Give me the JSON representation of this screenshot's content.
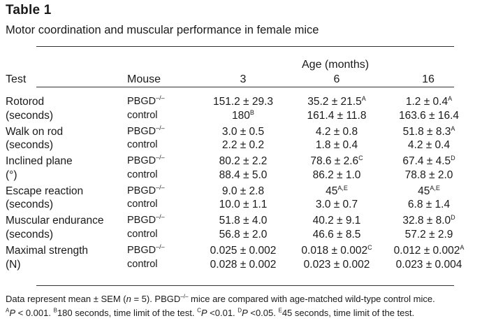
{
  "table": {
    "label": "Table 1",
    "caption": "Motor coordination and muscular performance in female mice",
    "age_header": "Age (months)",
    "col_test": "Test",
    "col_mouse": "Mouse",
    "col_3": "3",
    "col_6": "6",
    "col_16": "16",
    "rows": [
      {
        "test": "Rotorod",
        "mouse": "PBGD",
        "mouse_sup": "–/–",
        "v3": "151.2 ± 29.3",
        "v3_sup": "",
        "v6": "35.2 ± 21.5",
        "v6_sup": "A",
        "v16": "1.2 ± 0.4",
        "v16_sup": "A"
      },
      {
        "test": "(seconds)",
        "mouse": "control",
        "mouse_sup": "",
        "v3": "180",
        "v3_sup": "B",
        "v6": "161.4 ± 11.8",
        "v6_sup": "",
        "v16": "163.6 ± 16.4",
        "v16_sup": ""
      },
      {
        "test": "Walk on rod",
        "mouse": "PBGD",
        "mouse_sup": "–/–",
        "v3": "3.0 ± 0.5",
        "v3_sup": "",
        "v6": "4.2 ± 0.8",
        "v6_sup": "",
        "v16": "51.8 ± 8.3",
        "v16_sup": "A"
      },
      {
        "test": "(seconds)",
        "mouse": "control",
        "mouse_sup": "",
        "v3": "2.2 ± 0.2",
        "v3_sup": "",
        "v6": "1.8 ± 0.4",
        "v6_sup": "",
        "v16": "4.2 ± 0.4",
        "v16_sup": ""
      },
      {
        "test": "Inclined plane",
        "mouse": "PBGD",
        "mouse_sup": "–/–",
        "v3": "80.2 ± 2.2",
        "v3_sup": "",
        "v6": "78.6 ± 2.6",
        "v6_sup": "C",
        "v16": "67.4 ± 4.5",
        "v16_sup": "D"
      },
      {
        "test": "(°)",
        "mouse": "control",
        "mouse_sup": "",
        "v3": "88.4 ± 5.0",
        "v3_sup": "",
        "v6": "86.2 ± 1.0",
        "v6_sup": "",
        "v16": "78.8 ± 2.0",
        "v16_sup": ""
      },
      {
        "test": "Escape reaction",
        "mouse": "PBGD",
        "mouse_sup": "–/–",
        "v3": "9.0 ± 2.8",
        "v3_sup": "",
        "v6": "45",
        "v6_sup": "A,E",
        "v16": "45",
        "v16_sup": "A,E"
      },
      {
        "test": "(seconds)",
        "mouse": "control",
        "mouse_sup": "",
        "v3": "10.0 ± 1.1",
        "v3_sup": "",
        "v6": "3.0 ± 0.7",
        "v6_sup": "",
        "v16": "6.8 ± 1.4",
        "v16_sup": ""
      },
      {
        "test": "Muscular endurance",
        "mouse": "PBGD",
        "mouse_sup": "–/–",
        "v3": "51.8 ± 4.0",
        "v3_sup": "",
        "v6": "40.2 ± 9.1",
        "v6_sup": "",
        "v16": "32.8 ± 8.0",
        "v16_sup": "D"
      },
      {
        "test": "(seconds)",
        "mouse": "control",
        "mouse_sup": "",
        "v3": "56.8 ± 2.0",
        "v3_sup": "",
        "v6": "46.6 ± 8.5",
        "v6_sup": "",
        "v16": "57.2 ± 2.9",
        "v16_sup": ""
      },
      {
        "test": "Maximal strength",
        "mouse": "PBGD",
        "mouse_sup": "–/–",
        "v3": "0.025 ± 0.002",
        "v3_sup": "",
        "v6": "0.018 ± 0.002",
        "v6_sup": "C",
        "v16": "0.012 ± 0.002",
        "v16_sup": "A"
      },
      {
        "test": "(N)",
        "mouse": "control",
        "mouse_sup": "",
        "v3": "0.028 ± 0.002",
        "v3_sup": "",
        "v6": "0.023 ± 0.002",
        "v6_sup": "",
        "v16": "0.023 ± 0.004",
        "v16_sup": ""
      }
    ],
    "footnote": {
      "line1_a": "Data represent mean ± SEM (",
      "line1_n": "n",
      "line1_b": " = 5). PBGD",
      "line1_sup": "–/–",
      "line1_c": " mice are compared with age-matched wild-type control mice.",
      "notes": [
        {
          "mark": "A",
          "p": "P",
          "text": " < 0.001. "
        },
        {
          "mark": "B",
          "p": "",
          "text": "180 seconds, time limit of the test. "
        },
        {
          "mark": "C",
          "p": "P",
          "text": " <0.01. "
        },
        {
          "mark": "D",
          "p": "P",
          "text": " <0.05. "
        },
        {
          "mark": "E",
          "p": "",
          "text": "45 seconds, time limit of the test."
        }
      ]
    }
  }
}
